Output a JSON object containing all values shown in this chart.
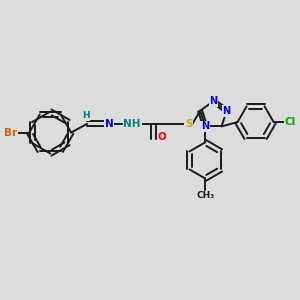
{
  "bg_color": "#dcdcdc",
  "bond_color": "#1a1a1a",
  "bond_width": 1.4,
  "atom_colors": {
    "Br": "#cc6600",
    "N": "#0000ee",
    "H": "#008080",
    "O": "#ff0000",
    "S": "#ccaa00",
    "Cl": "#00aa00",
    "C": "#1a1a1a"
  },
  "font_size": 7.5,
  "fig_width": 3.0,
  "fig_height": 3.0,
  "dpi": 100,
  "xlim": [
    0,
    10
  ],
  "ylim": [
    1,
    9
  ]
}
